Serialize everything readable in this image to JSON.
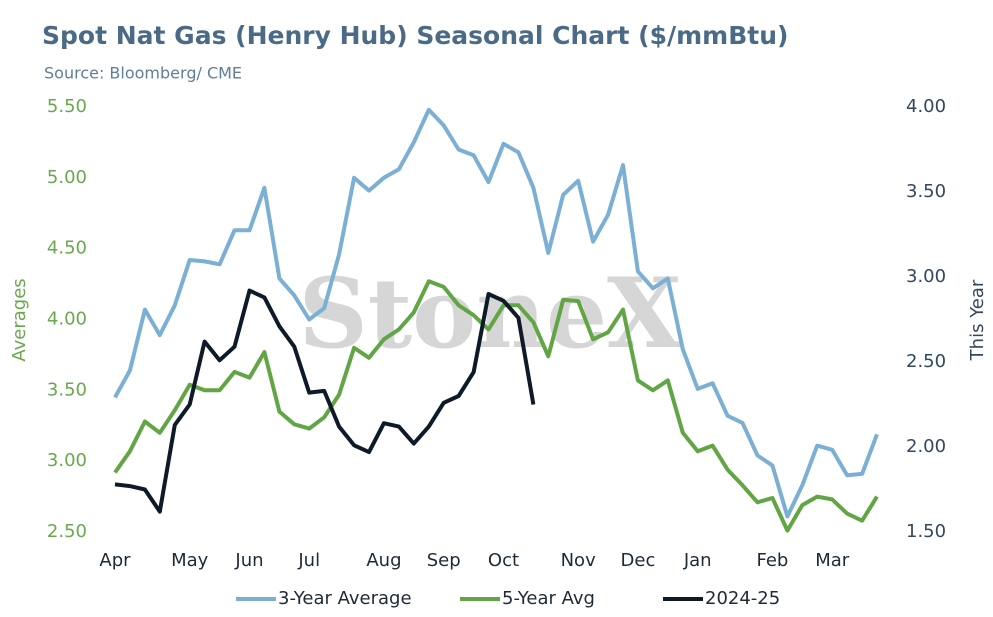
{
  "chart_data": {
    "type": "line",
    "title": "Spot Nat Gas (Henry Hub) Seasonal Chart ($/mmBtu)",
    "subtitle": "Source: Bloomberg/ CME",
    "watermark": "StoneX",
    "y_label": "Averages",
    "y2_label": "This Year",
    "categories": [
      "Apr",
      null,
      null,
      null,
      null,
      "May",
      null,
      null,
      null,
      "Jun",
      null,
      null,
      null,
      "Jul",
      null,
      null,
      null,
      null,
      "Aug",
      null,
      null,
      null,
      "Sep",
      null,
      null,
      null,
      "Oct",
      null,
      null,
      null,
      null,
      "Nov",
      null,
      null,
      null,
      "Dec",
      null,
      null,
      null,
      "Jan",
      null,
      null,
      null,
      null,
      "Feb",
      null,
      null,
      null,
      "Mar",
      null,
      null,
      null
    ],
    "ylim": [
      2.5,
      5.5
    ],
    "yticks": [
      {
        "value": 2.5,
        "label": "2.50"
      },
      {
        "value": 3,
        "label": "3.00"
      },
      {
        "value": 3.5,
        "label": "3.50"
      },
      {
        "value": 4,
        "label": "4.00"
      },
      {
        "value": 4.5,
        "label": "4.50"
      },
      {
        "value": 5,
        "label": "5.00"
      },
      {
        "value": 5.5,
        "label": "5.50"
      }
    ],
    "y2lim": [
      1.5,
      4.0
    ],
    "y2ticks": [
      {
        "value": 1.5,
        "label": "1.50"
      },
      {
        "value": 2,
        "label": "2.00"
      },
      {
        "value": 2.5,
        "label": "2.50"
      },
      {
        "value": 3,
        "label": "3.00"
      },
      {
        "value": 3.5,
        "label": "3.50"
      },
      {
        "value": 4,
        "label": "4.00"
      }
    ],
    "legend": "bottom",
    "series": [
      {
        "name": "3-Year Average",
        "color": "#7bafd4",
        "values": [
          3.45,
          3.64,
          4.07,
          3.89,
          4.1,
          4.42,
          4.41,
          4.39,
          4.63,
          4.63,
          4.93,
          4.29,
          4.17,
          4.0,
          4.08,
          4.46,
          5.0,
          4.91,
          5.0,
          5.06,
          5.25,
          5.48,
          5.37,
          5.2,
          5.16,
          4.97,
          5.24,
          5.18,
          4.93,
          4.47,
          4.88,
          4.98,
          4.55,
          4.74,
          5.09,
          4.34,
          4.22,
          4.29,
          3.79,
          3.51,
          3.55,
          3.32,
          3.27,
          3.04,
          2.97,
          2.61,
          2.83,
          3.11,
          3.08,
          2.9,
          2.91,
          3.19
        ]
      },
      {
        "name": "5-Year Avg",
        "color": "#62a545",
        "values": [
          2.92,
          3.07,
          3.28,
          3.2,
          3.36,
          3.54,
          3.5,
          3.5,
          3.63,
          3.59,
          3.77,
          3.35,
          3.26,
          3.23,
          3.31,
          3.47,
          3.8,
          3.73,
          3.86,
          3.93,
          4.05,
          4.27,
          4.23,
          4.1,
          4.03,
          3.93,
          4.1,
          4.1,
          3.98,
          3.74,
          4.14,
          4.13,
          3.86,
          3.91,
          4.07,
          3.57,
          3.5,
          3.57,
          3.2,
          3.07,
          3.11,
          2.94,
          2.83,
          2.71,
          2.74,
          2.51,
          2.69,
          2.75,
          2.73,
          2.63,
          2.58,
          2.75
        ]
      },
      {
        "name": "2024-25",
        "color": "#0e1a28",
        "axis": "y2",
        "values": [
          1.78,
          1.77,
          1.75,
          1.62,
          2.13,
          2.25,
          2.62,
          2.51,
          2.59,
          2.92,
          2.88,
          2.71,
          2.59,
          2.32,
          2.33,
          2.12,
          2.01,
          1.97,
          2.14,
          2.12,
          2.02,
          2.12,
          2.26,
          2.3,
          2.44,
          2.9,
          2.86,
          2.76,
          2.25,
          null,
          null,
          null,
          null,
          null,
          null,
          null,
          null,
          null,
          null,
          null,
          null,
          null,
          null,
          null,
          null,
          null,
          null,
          null,
          null,
          null,
          null,
          null
        ]
      }
    ]
  }
}
